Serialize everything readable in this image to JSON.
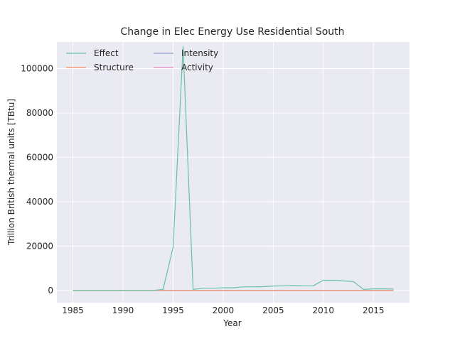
{
  "chart_data": {
    "type": "line",
    "title": "Change in Elec Energy Use Residential South",
    "xlabel": "Year",
    "ylabel": "Trillion British thermal units [TBtu]",
    "xlim": [
      1983.4,
      2018.6
    ],
    "ylim": [
      -5500,
      112000
    ],
    "xticks": [
      1985,
      1990,
      1995,
      2000,
      2005,
      2010,
      2015
    ],
    "yticks": [
      0,
      20000,
      40000,
      60000,
      80000,
      100000
    ],
    "grid": true,
    "legend": {
      "placement": "top-left",
      "columns": 2
    },
    "x": [
      1985,
      1986,
      1987,
      1988,
      1989,
      1990,
      1991,
      1992,
      1993,
      1994,
      1995,
      1996,
      1997,
      1998,
      1999,
      2000,
      2001,
      2002,
      2003,
      2004,
      2005,
      2006,
      2007,
      2008,
      2009,
      2010,
      2011,
      2012,
      2013,
      2014,
      2015,
      2016,
      2017
    ],
    "series": [
      {
        "name": "Effect",
        "color": "#66c2a5",
        "values": [
          0,
          0,
          0,
          0,
          0,
          0,
          0,
          0,
          0,
          500,
          19500,
          110000,
          500,
          1000,
          1000,
          1200,
          1200,
          1600,
          1600,
          1700,
          2000,
          2100,
          2200,
          2100,
          2100,
          4600,
          4600,
          4300,
          4000,
          500,
          700,
          700,
          600
        ]
      },
      {
        "name": "Structure",
        "color": "#fc8d62",
        "values": [
          0,
          0,
          0,
          0,
          0,
          0,
          0,
          0,
          0,
          0,
          0,
          0,
          0,
          0,
          0,
          0,
          0,
          0,
          0,
          0,
          0,
          0,
          0,
          0,
          0,
          0,
          0,
          0,
          0,
          0,
          0,
          0,
          0
        ]
      },
      {
        "name": "Intensity",
        "color": "#8da0cb",
        "values": [
          0,
          0,
          0,
          0,
          0,
          0,
          0,
          0,
          0,
          0,
          0,
          0,
          0,
          0,
          0,
          0,
          0,
          0,
          0,
          0,
          0,
          0,
          0,
          0,
          0,
          0,
          0,
          0,
          0,
          0,
          0,
          0,
          0
        ]
      },
      {
        "name": "Activity",
        "color": "#e78ac3",
        "values": [
          0,
          0,
          0,
          0,
          0,
          0,
          0,
          0,
          0,
          0,
          0,
          0,
          0,
          0,
          0,
          0,
          0,
          0,
          0,
          0,
          0,
          0,
          0,
          0,
          0,
          0,
          0,
          0,
          0,
          0,
          0,
          0,
          0
        ]
      }
    ],
    "colors": {
      "plot_background": "#eaeaf2",
      "grid": "#ffffff",
      "text": "#262626"
    }
  }
}
